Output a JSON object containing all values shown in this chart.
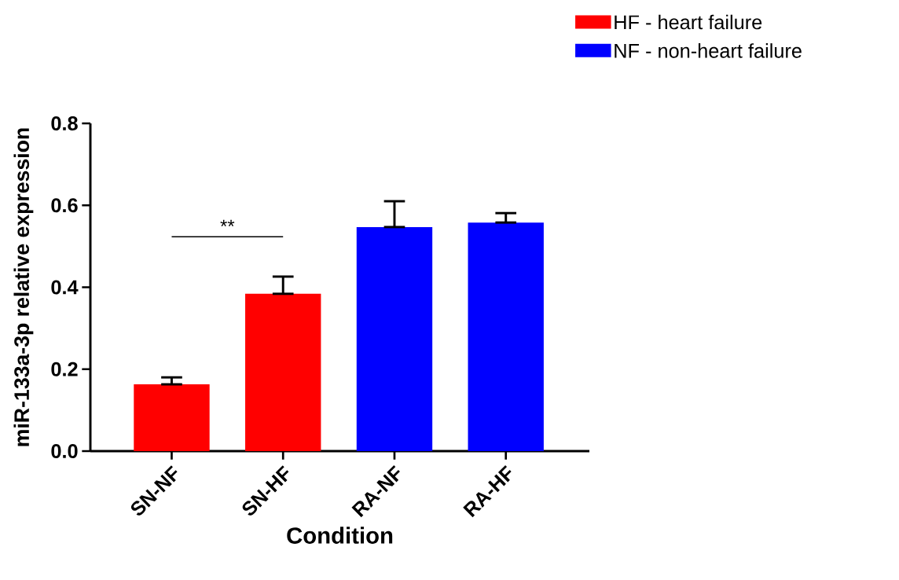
{
  "chart_data": {
    "type": "bar",
    "xlabel": "Condition",
    "ylabel": "miR-133a-3p relative expression",
    "categories": [
      "SN-NF",
      "SN-HF",
      "RA-NF",
      "RA-HF"
    ],
    "series": [
      {
        "name": "HF - heart failure",
        "color": "#ff0000",
        "values": [
          0.163,
          0.384,
          null,
          null
        ],
        "errors": [
          [
            0.163,
            0.18
          ],
          [
            0.384,
            0.426
          ],
          null,
          null
        ]
      },
      {
        "name": "NF - non-heart failure",
        "color": "#0000ff",
        "values": [
          null,
          null,
          0.547,
          0.558
        ],
        "errors": [
          null,
          null,
          [
            0.547,
            0.61
          ],
          [
            0.558,
            0.581
          ]
        ]
      }
    ],
    "ylim": [
      0,
      0.8
    ],
    "yticks": [
      {
        "value": 0,
        "label": "0.0"
      },
      {
        "value": 0.2,
        "label": "0.2"
      },
      {
        "value": 0.4,
        "label": "0.4"
      },
      {
        "value": 0.6,
        "label": "0.6"
      },
      {
        "value": 0.8,
        "label": "0.8"
      }
    ],
    "annotations": [
      "**"
    ],
    "legend": "top right",
    "grid": false
  }
}
